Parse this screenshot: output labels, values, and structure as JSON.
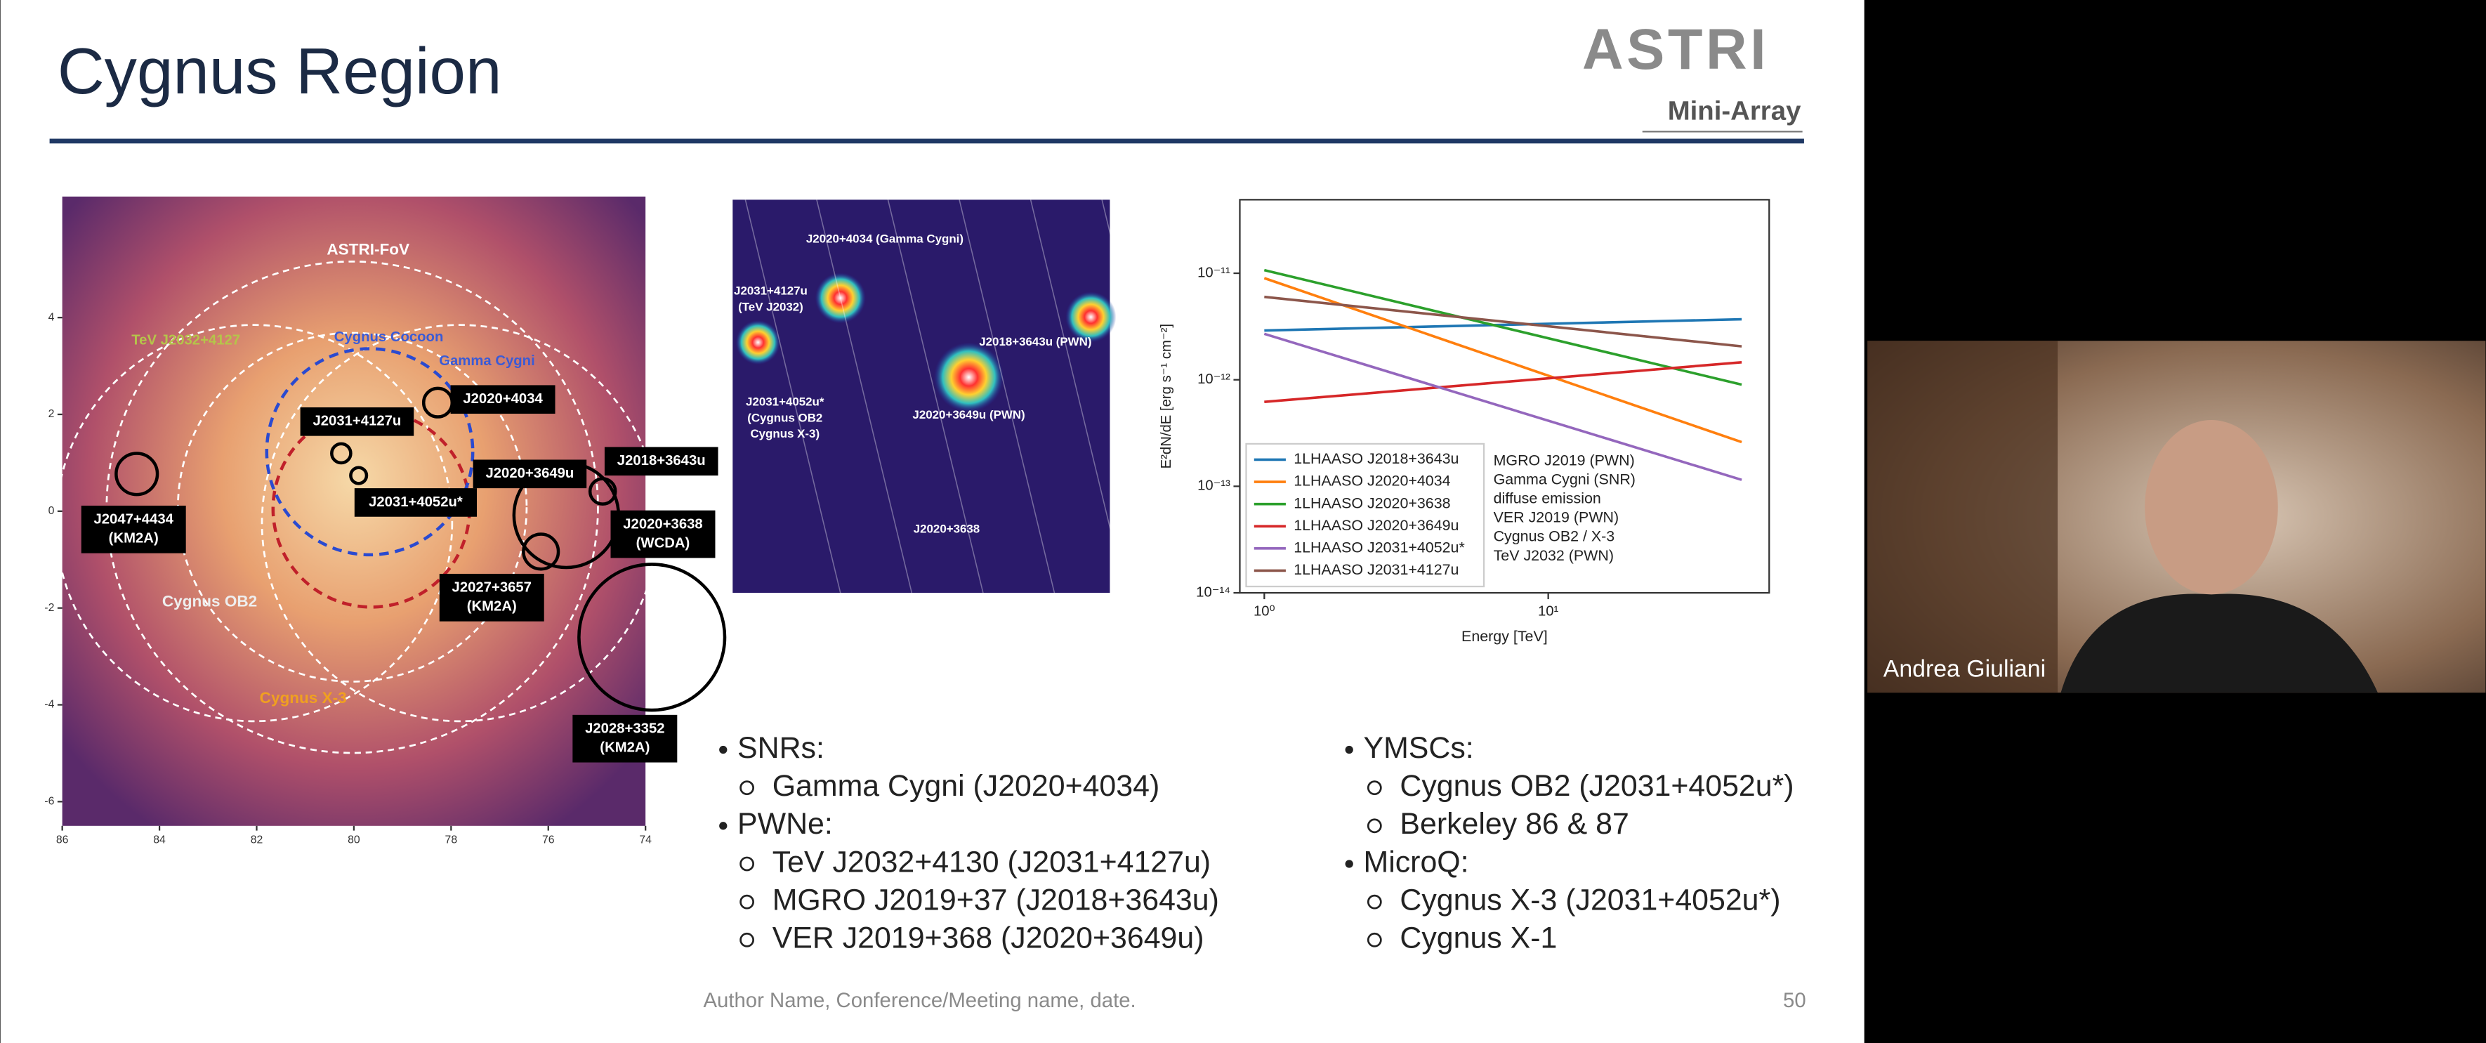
{
  "slide": {
    "title": "Cygnus Region",
    "logo": "ASTRI",
    "logo_subtitle": "Mini-Array",
    "footer": "Author Name, Conference/Meeting name, date.",
    "page_number": "50"
  },
  "sky_map": {
    "xlim": [
      86,
      74
    ],
    "ylim": [
      -6.5,
      6.5
    ],
    "xticks": [
      86,
      84,
      82,
      80,
      78,
      76,
      74
    ],
    "yticks": [
      4,
      2,
      0,
      -2,
      -4,
      -6
    ],
    "labels": [
      "ASTRI-FoV",
      "TeV J2032+4127",
      "Cygnus Cocoon",
      "Gamma Cygni",
      "Cygnus OB2",
      "Cygnus X-3"
    ],
    "boxed_labels": [
      [
        "J2020+4034"
      ],
      [
        "J2031+4127u"
      ],
      [
        "J2031+4052u*"
      ],
      [
        "J2020+3649u"
      ],
      [
        "J2018+3643u"
      ],
      [
        "J2020+3638",
        "(WCDA)"
      ],
      [
        "J2047+4434",
        "(KM2A)"
      ],
      [
        "J2027+3657",
        "(KM2A)"
      ],
      [
        "J2028+3352",
        "(KM2A)"
      ]
    ]
  },
  "zoom_map": {
    "labels": [
      "J2020+4034 (Gamma Cygni)",
      "J2031+4127u",
      "(TeV J2032)",
      "J2018+3643u (PWN)",
      "J2031+4052u*",
      "(Cygnus OB2",
      "Cygnus X-3)",
      "J2020+3649u (PWN)",
      "J2020+3638"
    ]
  },
  "chart_data": {
    "type": "line",
    "x_label": "Energy [TeV]",
    "y_label": "E²dN/dE [erg s⁻¹ cm⁻²]",
    "log_x": true,
    "log_y": true,
    "xlim": [
      0.82,
      60
    ],
    "ylim": [
      1e-14,
      4.9e-11
    ],
    "xticks": [
      {
        "value": 1,
        "label": "10⁰"
      },
      {
        "value": 10,
        "label": "10¹"
      }
    ],
    "yticks": [
      {
        "value": 1e-14,
        "label": "10⁻¹⁴"
      },
      {
        "value": 1e-13,
        "label": "10⁻¹³"
      },
      {
        "value": 1e-12,
        "label": "10⁻¹²"
      },
      {
        "value": 1e-11,
        "label": "10⁻¹¹"
      }
    ],
    "series": [
      {
        "name": "1LHAASO J2018+3643u",
        "color": "#1f77b4",
        "x": [
          1,
          48
        ],
        "values": [
          2.9e-12,
          3.7e-12
        ]
      },
      {
        "name": "1LHAASO J2020+4034",
        "color": "#ff7f0e",
        "x": [
          1,
          48
        ],
        "values": [
          9e-12,
          2.6e-13
        ]
      },
      {
        "name": "1LHAASO J2020+3638",
        "color": "#2ca02c",
        "x": [
          1,
          48
        ],
        "values": [
          1.07e-11,
          9e-13
        ]
      },
      {
        "name": "1LHAASO J2020+3649u",
        "color": "#d62728",
        "x": [
          1,
          48
        ],
        "values": [
          6.2e-13,
          1.46e-12
        ]
      },
      {
        "name": "1LHAASO J2031+4052u*",
        "color": "#9467bd",
        "x": [
          1,
          48
        ],
        "values": [
          2.7e-12,
          1.15e-13
        ]
      },
      {
        "name": "1LHAASO J2031+4127u",
        "color": "#8c564b",
        "x": [
          1,
          48
        ],
        "values": [
          6e-12,
          2.06e-12
        ]
      }
    ],
    "notes": [
      "MGRO J2019 (PWN)",
      "Gamma Cygni (SNR)",
      "diffuse emission",
      "VER J2019 (PWN)",
      "Cygnus OB2 / X-3",
      "TeV J2032 (PWN)"
    ]
  },
  "bullets": [
    [
      {
        "heading": "SNRs:",
        "items": [
          "Gamma Cygni (J2020+4034)"
        ]
      },
      {
        "heading": "PWNe:",
        "items": [
          "TeV J2032+4130 (J2031+4127u)",
          "MGRO J2019+37 (J2018+3643u)",
          "VER J2019+368 (J2020+3649u)"
        ]
      }
    ],
    [
      {
        "heading": "YMSCs:",
        "items": [
          "Cygnus OB2 (J2031+4052u*)",
          "Berkeley 86 & 87"
        ]
      },
      {
        "heading": "MicroQ:",
        "items": [
          "Cygnus X-3 (J2031+4052u*)",
          "Cygnus X-1"
        ]
      }
    ]
  ],
  "video": {
    "participant": "Andrea Giuliani"
  }
}
